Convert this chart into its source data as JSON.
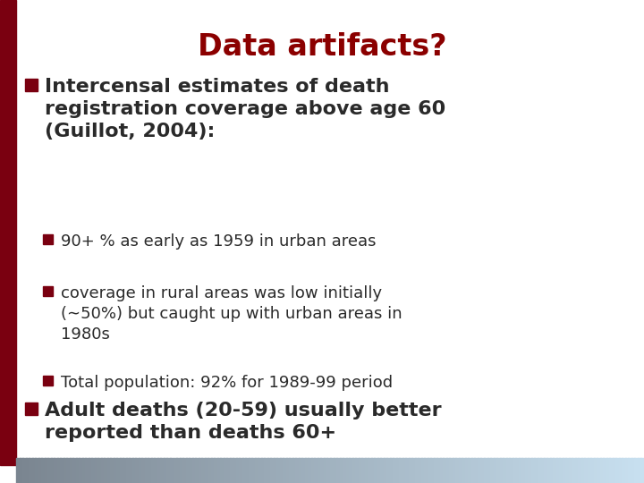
{
  "title": "Data artifacts?",
  "title_color": "#8B0000",
  "title_fontsize": 24,
  "bg_color": "#FFFFFF",
  "left_bar_color": "#7A0010",
  "bullet_sq_color": "#7A0010",
  "sub_bullet_sq_color": "#7A0010",
  "text_color": "#2A2A2A",
  "bullet1_text": "Intercensal estimates of death\nregistration coverage above age 60\n(Guillot, 2004):",
  "bullet1_fontsize": 16,
  "subbullets": [
    "90+ % as early as 1959 in urban areas",
    "coverage in rural areas was low initially\n(∼50%) but caught up with urban areas in\n1980s",
    "Total population: 92% for 1989-99 period"
  ],
  "subbullet_fontsize": 13,
  "bullet2_text": "Adult deaths (20-59) usually better\nreported than deaths 60+",
  "bullet2_fontsize": 16,
  "bottom_bar_left": "#7A8590",
  "bottom_bar_right": "#C8E0F0"
}
